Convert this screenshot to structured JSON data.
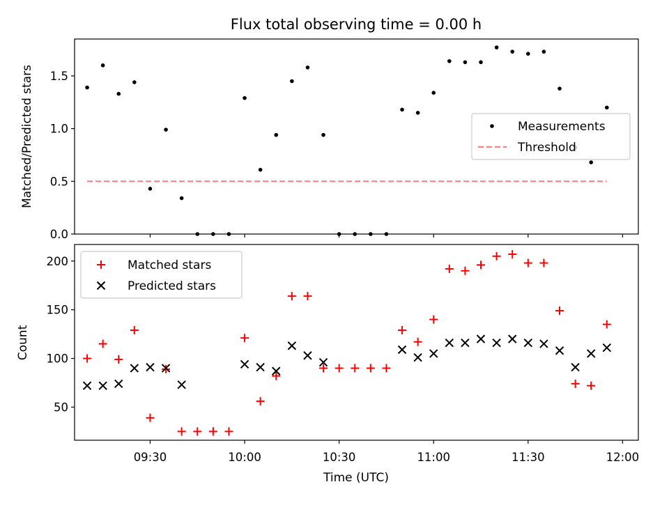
{
  "title": "Flux total observing time = 0.00 h",
  "x_axis": {
    "label": "Time (UTC)",
    "range_minutes": [
      546,
      725
    ],
    "ticks": [
      {
        "minute": 570,
        "label": "09:30"
      },
      {
        "minute": 600,
        "label": "10:00"
      },
      {
        "minute": 630,
        "label": "10:30"
      },
      {
        "minute": 660,
        "label": "11:00"
      },
      {
        "minute": 690,
        "label": "11:30"
      },
      {
        "minute": 720,
        "label": "12:00"
      }
    ]
  },
  "chart_data": [
    {
      "type": "scatter",
      "ylabel": "Matched/Predicted stars",
      "ylim": [
        0,
        1.85
      ],
      "yticks": [
        "0.0",
        "0.5",
        "1.0",
        "1.5"
      ],
      "legend": {
        "position": "center-right"
      },
      "series": [
        {
          "name": "Measurements",
          "kind": "scatter",
          "color": "#000000",
          "x": [
            "09:10",
            "09:15",
            "09:20",
            "09:25",
            "09:30",
            "09:35",
            "09:40",
            "09:45",
            "09:50",
            "09:55",
            "10:00",
            "10:05",
            "10:10",
            "10:15",
            "10:20",
            "10:25",
            "10:30",
            "10:35",
            "10:40",
            "10:45",
            "10:50",
            "10:55",
            "11:00",
            "11:05",
            "11:10",
            "11:15",
            "11:20",
            "11:25",
            "11:30",
            "11:35",
            "11:40",
            "11:45",
            "11:50",
            "11:55"
          ],
          "y": [
            1.39,
            1.6,
            1.33,
            1.44,
            0.43,
            0.99,
            0.34,
            0.0,
            0.0,
            0.0,
            1.29,
            0.61,
            0.94,
            1.45,
            1.58,
            0.94,
            0.0,
            0.0,
            0.0,
            0.0,
            1.18,
            1.15,
            1.34,
            1.64,
            1.63,
            1.63,
            1.77,
            1.73,
            1.71,
            1.73,
            1.38,
            0.82,
            0.68,
            1.2
          ]
        },
        {
          "name": "Threshold",
          "kind": "line",
          "color": "#ff8080",
          "x": [
            "09:10",
            "11:55"
          ],
          "y": [
            0.5,
            0.5
          ]
        }
      ]
    },
    {
      "type": "scatter",
      "ylabel": "Count",
      "ylim": [
        16,
        217
      ],
      "yticks": [
        "50",
        "100",
        "150",
        "200"
      ],
      "legend": {
        "position": "top-left"
      },
      "series": [
        {
          "name": "Matched stars",
          "kind": "scatter",
          "marker": "+",
          "color": "#ff0000",
          "x": [
            "09:10",
            "09:15",
            "09:20",
            "09:25",
            "09:30",
            "09:35",
            "09:40",
            "09:45",
            "09:50",
            "09:55",
            "10:00",
            "10:05",
            "10:10",
            "10:15",
            "10:20",
            "10:25",
            "10:30",
            "10:35",
            "10:40",
            "10:45",
            "10:50",
            "10:55",
            "11:00",
            "11:05",
            "11:10",
            "11:15",
            "11:20",
            "11:25",
            "11:30",
            "11:35",
            "11:40",
            "11:45",
            "11:50",
            "11:55"
          ],
          "y": [
            100,
            115,
            99,
            129,
            39,
            89,
            25,
            25,
            25,
            25,
            121,
            56,
            82,
            164,
            164,
            90,
            90,
            90,
            90,
            90,
            129,
            117,
            140,
            192,
            190,
            196,
            205,
            207,
            198,
            198,
            149,
            74,
            72,
            135
          ]
        },
        {
          "name": "Predicted stars",
          "kind": "scatter",
          "marker": "x",
          "color": "#000000",
          "x": [
            "09:10",
            "09:15",
            "09:20",
            "09:25",
            "09:30",
            "09:35",
            "09:40",
            "10:00",
            "10:05",
            "10:10",
            "10:15",
            "10:20",
            "10:25",
            "10:50",
            "10:55",
            "11:00",
            "11:05",
            "11:10",
            "11:15",
            "11:20",
            "11:25",
            "11:30",
            "11:35",
            "11:40",
            "11:45",
            "11:50",
            "11:55"
          ],
          "y": [
            72,
            72,
            74,
            90,
            91,
            90,
            73,
            94,
            91,
            87,
            113,
            103,
            96,
            109,
            101,
            105,
            116,
            116,
            120,
            116,
            120,
            116,
            115,
            108,
            91,
            105,
            111
          ]
        }
      ]
    }
  ]
}
